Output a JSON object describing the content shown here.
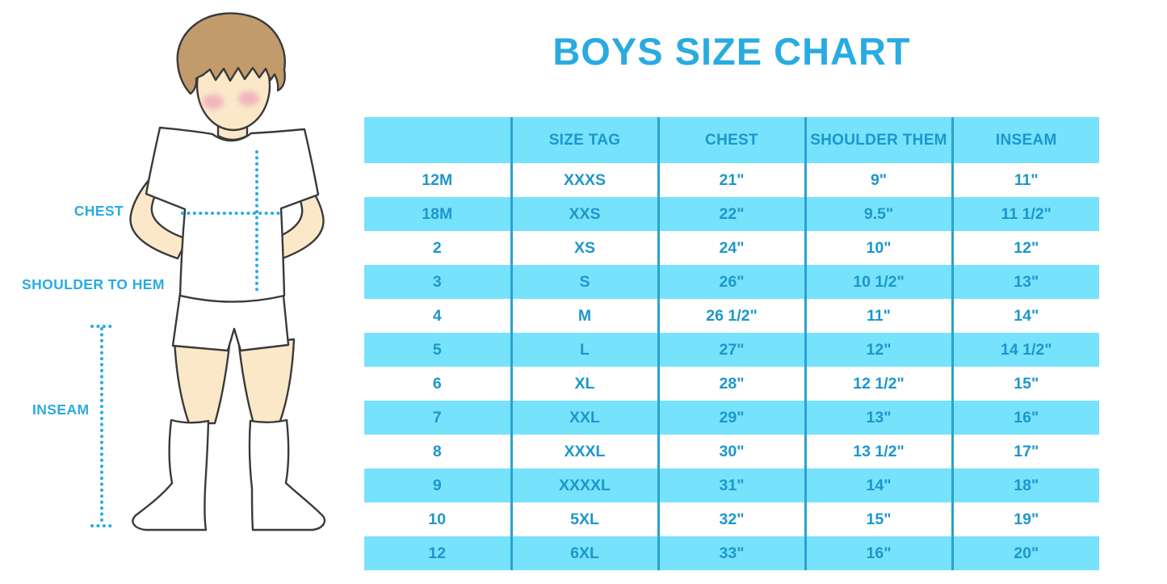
{
  "title_note": "",
  "chart_data": {
    "type": "table",
    "title": "BOYS SIZE CHART",
    "headers": [
      "",
      "SIZE TAG",
      "CHEST",
      "SHOULDER THEM",
      "INSEAM"
    ],
    "rows": [
      [
        "12M",
        "XXXS",
        "21\"",
        "9\"",
        "11\""
      ],
      [
        "18M",
        "XXS",
        "22\"",
        "9.5\"",
        "11 1/2\""
      ],
      [
        "2",
        "XS",
        "24\"",
        "10\"",
        "12\""
      ],
      [
        "3",
        "S",
        "26\"",
        "10 1/2\"",
        "13\""
      ],
      [
        "4",
        "M",
        "26 1/2\"",
        "11\"",
        "14\""
      ],
      [
        "5",
        "L",
        "27\"",
        "12\"",
        "14 1/2\""
      ],
      [
        "6",
        "XL",
        "28\"",
        "12 1/2\"",
        "15\""
      ],
      [
        "7",
        "XXL",
        "29\"",
        "13\"",
        "16\""
      ],
      [
        "8",
        "XXXL",
        "30\"",
        "13 1/2\"",
        "17\""
      ],
      [
        "9",
        "XXXXL",
        "31\"",
        "14\"",
        "18\""
      ],
      [
        "10",
        "5XL",
        "32\"",
        "15\"",
        "19\""
      ],
      [
        "12",
        "6XL",
        "33\"",
        "16\"",
        "20\""
      ]
    ]
  },
  "diagram": {
    "labels": {
      "chest": "CHEST",
      "shoulder_to_hem": "SHOULDER TO HEM",
      "inseam": "INSEAM"
    }
  },
  "colors": {
    "accent": "#29ABE2",
    "table_text": "#1C97CC",
    "stripe": "#77E2FB",
    "divider": "#2AA2D2",
    "hair": "#C29B6C",
    "skin": "#FAE8C8",
    "blush": "#F0A8BC",
    "outline": "#3A3A3A"
  }
}
